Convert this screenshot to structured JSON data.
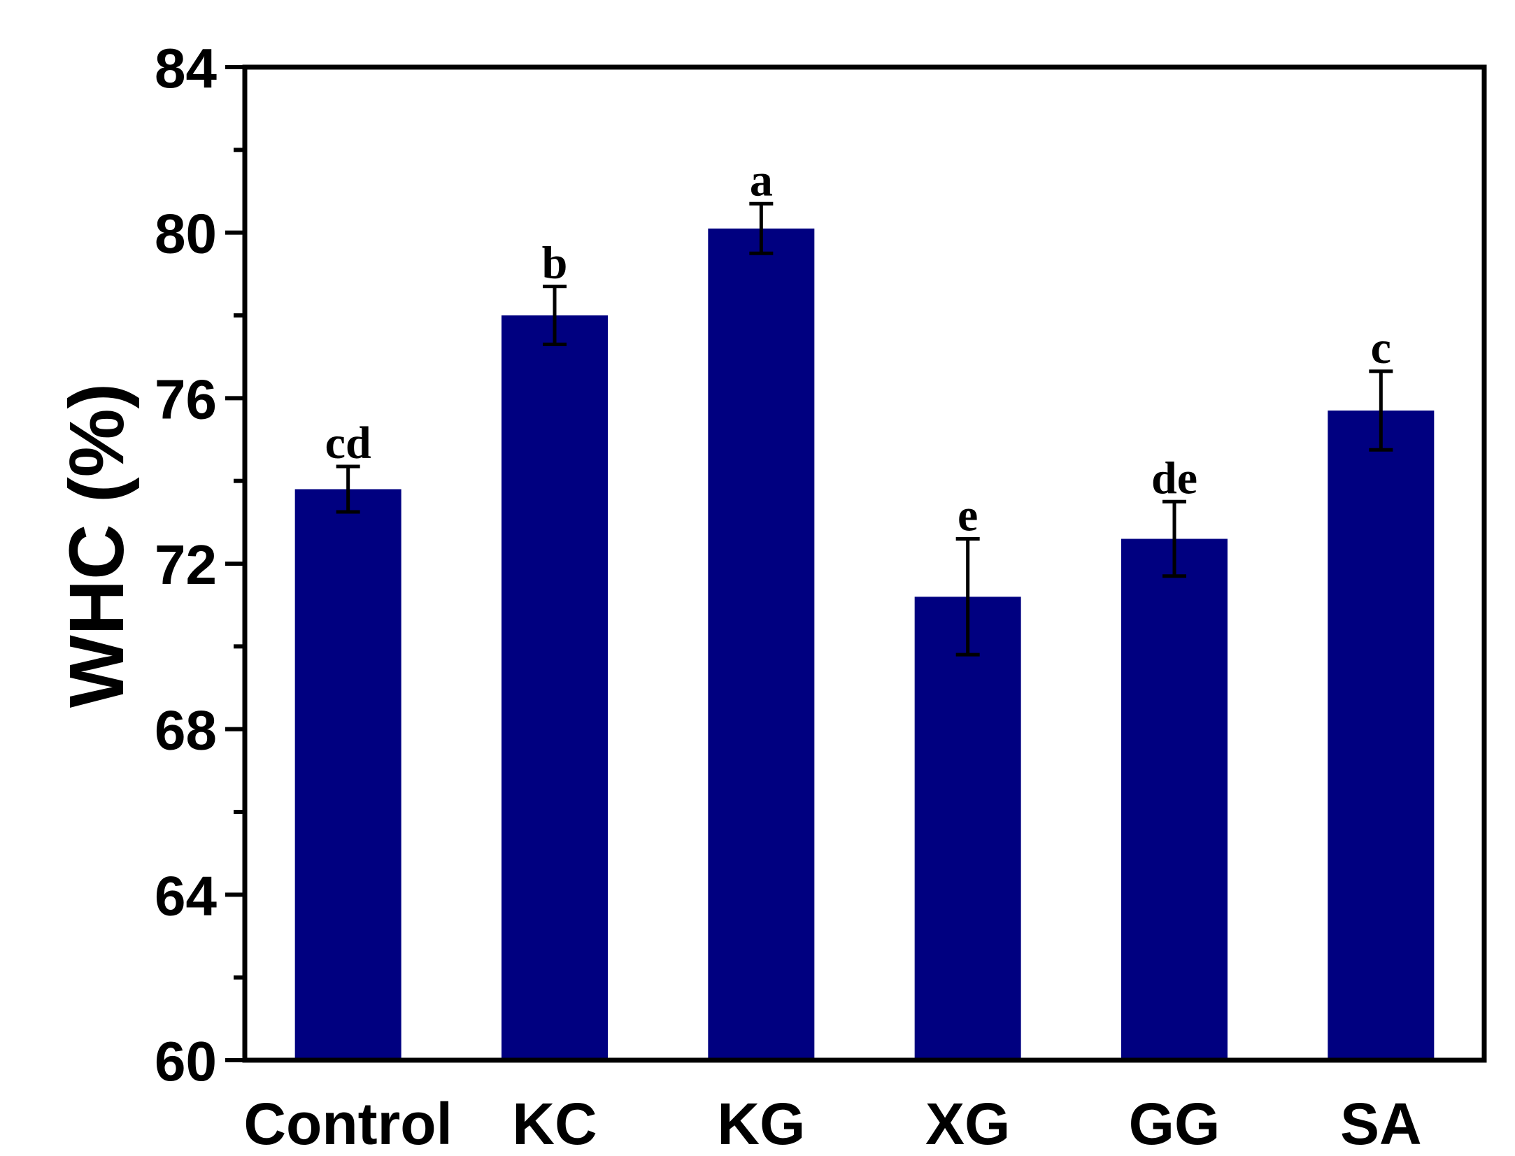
{
  "chart_data": {
    "type": "bar",
    "title": "",
    "xlabel": "",
    "ylabel": "WHC (%)",
    "ylim": [
      60,
      84
    ],
    "yticks": [
      60,
      64,
      68,
      72,
      76,
      80,
      84
    ],
    "grid": false,
    "bar_color": "#000080",
    "categories": [
      "Control",
      "KC",
      "KG",
      "XG",
      "GG",
      "SA"
    ],
    "values": [
      73.8,
      78.0,
      80.1,
      71.2,
      72.6,
      75.7
    ],
    "errors": [
      0.55,
      0.7,
      0.6,
      1.4,
      0.9,
      0.95
    ],
    "significance_letters": [
      "cd",
      "b",
      "a",
      "e",
      "de",
      "c"
    ]
  }
}
